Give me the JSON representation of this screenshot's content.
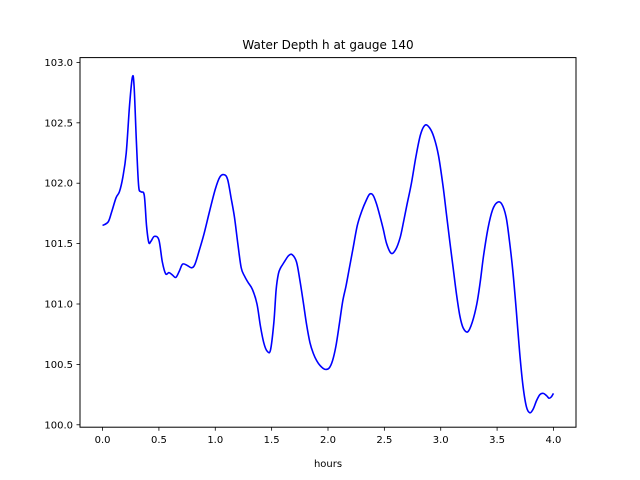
{
  "chart_data": {
    "type": "line",
    "title": "Water Depth h at gauge 140",
    "xlabel": "hours",
    "ylabel": "",
    "xlim": [
      -0.2,
      4.2
    ],
    "ylim": [
      99.98,
      103.04
    ],
    "xticks": [
      0.0,
      0.5,
      1.0,
      1.5,
      2.0,
      2.5,
      3.0,
      3.5,
      4.0
    ],
    "xtick_labels": [
      "0.0",
      "0.5",
      "1.0",
      "1.5",
      "2.0",
      "2.5",
      "3.0",
      "3.5",
      "4.0"
    ],
    "yticks": [
      100.0,
      100.5,
      101.0,
      101.5,
      102.0,
      102.5,
      103.0
    ],
    "ytick_labels": [
      "100.0",
      "100.5",
      "101.0",
      "101.5",
      "102.0",
      "102.5",
      "103.0"
    ],
    "grid": false,
    "series": [
      {
        "color": "#0000ff",
        "x": [
          0.0,
          0.05,
          0.08,
          0.12,
          0.15,
          0.18,
          0.21,
          0.24,
          0.265,
          0.28,
          0.3,
          0.32,
          0.34,
          0.37,
          0.39,
          0.41,
          0.43,
          0.46,
          0.5,
          0.53,
          0.56,
          0.59,
          0.62,
          0.65,
          0.68,
          0.71,
          0.75,
          0.79,
          0.82,
          0.86,
          0.9,
          0.95,
          1.0,
          1.04,
          1.08,
          1.11,
          1.14,
          1.17,
          1.2,
          1.23,
          1.26,
          1.29,
          1.33,
          1.37,
          1.4,
          1.43,
          1.46,
          1.49,
          1.52,
          1.54,
          1.56,
          1.58,
          1.6,
          1.62,
          1.65,
          1.68,
          1.72,
          1.75,
          1.78,
          1.81,
          1.84,
          1.87,
          1.9,
          1.93,
          1.97,
          2.01,
          2.04,
          2.07,
          2.1,
          2.13,
          2.16,
          2.19,
          2.22,
          2.26,
          2.3,
          2.34,
          2.37,
          2.4,
          2.43,
          2.46,
          2.49,
          2.52,
          2.56,
          2.6,
          2.64,
          2.67,
          2.7,
          2.74,
          2.78,
          2.82,
          2.86,
          2.9,
          2.94,
          2.98,
          3.02,
          3.05,
          3.08,
          3.11,
          3.14,
          3.17,
          3.2,
          3.24,
          3.28,
          3.32,
          3.35,
          3.38,
          3.42,
          3.46,
          3.5,
          3.54,
          3.58,
          3.61,
          3.64,
          3.67,
          3.7,
          3.73,
          3.76,
          3.79,
          3.82,
          3.85,
          3.88,
          3.91,
          3.94,
          3.96,
          3.98,
          4.0
        ],
        "y": [
          101.65,
          101.68,
          101.76,
          101.88,
          101.93,
          102.05,
          102.25,
          102.65,
          102.88,
          102.8,
          102.35,
          101.98,
          101.93,
          101.9,
          101.65,
          101.51,
          101.52,
          101.56,
          101.53,
          101.35,
          101.25,
          101.26,
          101.24,
          101.22,
          101.27,
          101.33,
          101.32,
          101.3,
          101.33,
          101.45,
          101.58,
          101.77,
          101.95,
          102.05,
          102.07,
          102.03,
          101.88,
          101.72,
          101.5,
          101.3,
          101.23,
          101.18,
          101.12,
          101.0,
          100.82,
          100.68,
          100.61,
          100.62,
          100.85,
          101.12,
          101.25,
          101.3,
          101.33,
          101.36,
          101.4,
          101.41,
          101.35,
          101.2,
          101.02,
          100.83,
          100.68,
          100.59,
          100.53,
          100.49,
          100.46,
          100.47,
          100.53,
          100.65,
          100.83,
          101.02,
          101.15,
          101.3,
          101.45,
          101.65,
          101.77,
          101.86,
          101.91,
          101.9,
          101.83,
          101.73,
          101.62,
          101.5,
          101.42,
          101.45,
          101.55,
          101.68,
          101.82,
          102.0,
          102.22,
          102.4,
          102.48,
          102.46,
          102.38,
          102.23,
          101.98,
          101.75,
          101.52,
          101.3,
          101.08,
          100.9,
          100.8,
          100.77,
          100.85,
          101.0,
          101.18,
          101.4,
          101.63,
          101.78,
          101.84,
          101.83,
          101.72,
          101.52,
          101.27,
          100.95,
          100.6,
          100.32,
          100.15,
          100.1,
          100.13,
          100.2,
          100.25,
          100.26,
          100.24,
          100.22,
          100.23,
          100.26
        ]
      }
    ]
  }
}
